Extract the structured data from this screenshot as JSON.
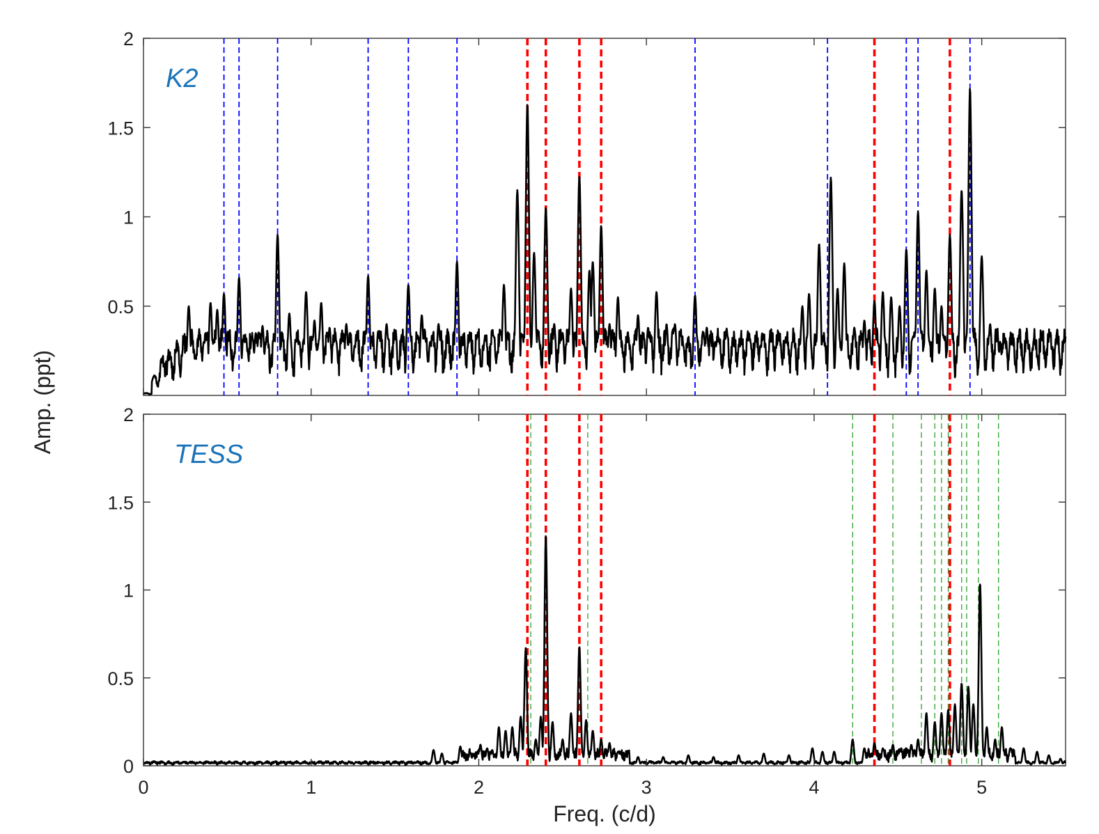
{
  "chart_data": {
    "type": "line",
    "xlabel": "Freq. (c/d)",
    "ylabel": "Amp. (ppt)",
    "xlim": [
      0,
      5.5
    ],
    "x_ticks": [
      "0",
      "1",
      "2",
      "3",
      "4",
      "5"
    ],
    "grid": false,
    "colors": {
      "spectrum": "#000000",
      "shared_lines": "#ff0000",
      "k2_lines": "#0000ff",
      "tess_lines": "#2ca02c",
      "panel_label": "#1a73b8"
    },
    "shared_frequencies": [
      2.29,
      2.4,
      2.6,
      2.73,
      4.36,
      4.81
    ],
    "panels": [
      {
        "label": "K2",
        "ylim": [
          0,
          2
        ],
        "y_ticks": [
          "0.5",
          "1",
          "1.5",
          "2"
        ],
        "marked_frequencies": [
          0.48,
          0.57,
          0.8,
          1.34,
          1.58,
          1.87,
          3.29,
          4.08,
          4.55,
          4.62,
          4.93
        ],
        "peaks": [
          [
            0.27,
            0.5
          ],
          [
            0.31,
            0.22
          ],
          [
            0.36,
            0.3
          ],
          [
            0.4,
            0.52
          ],
          [
            0.44,
            0.48
          ],
          [
            0.48,
            0.57
          ],
          [
            0.57,
            0.66
          ],
          [
            0.62,
            0.25
          ],
          [
            0.67,
            0.35
          ],
          [
            0.71,
            0.39
          ],
          [
            0.8,
            0.9
          ],
          [
            0.87,
            0.46
          ],
          [
            0.93,
            0.3
          ],
          [
            0.97,
            0.58
          ],
          [
            1.02,
            0.42
          ],
          [
            1.06,
            0.52
          ],
          [
            1.11,
            0.38
          ],
          [
            1.15,
            0.3
          ],
          [
            1.21,
            0.4
          ],
          [
            1.26,
            0.28
          ],
          [
            1.34,
            0.67
          ],
          [
            1.4,
            0.36
          ],
          [
            1.45,
            0.4
          ],
          [
            1.5,
            0.33
          ],
          [
            1.58,
            0.62
          ],
          [
            1.66,
            0.45
          ],
          [
            1.71,
            0.3
          ],
          [
            1.76,
            0.4
          ],
          [
            1.87,
            0.75
          ],
          [
            1.94,
            0.28
          ],
          [
            1.99,
            0.33
          ],
          [
            2.04,
            0.3
          ],
          [
            2.09,
            0.33
          ],
          [
            2.15,
            0.62
          ],
          [
            2.23,
            1.15
          ],
          [
            2.29,
            1.63
          ],
          [
            2.33,
            0.8
          ],
          [
            2.4,
            1.05
          ],
          [
            2.45,
            0.4
          ],
          [
            2.5,
            0.35
          ],
          [
            2.55,
            0.6
          ],
          [
            2.6,
            1.23
          ],
          [
            2.66,
            0.7
          ],
          [
            2.68,
            0.75
          ],
          [
            2.73,
            0.95
          ],
          [
            2.78,
            0.4
          ],
          [
            2.83,
            0.55
          ],
          [
            2.89,
            0.3
          ],
          [
            2.95,
            0.45
          ],
          [
            3.01,
            0.38
          ],
          [
            3.06,
            0.58
          ],
          [
            3.12,
            0.4
          ],
          [
            3.17,
            0.4
          ],
          [
            3.22,
            0.28
          ],
          [
            3.29,
            0.56
          ],
          [
            3.36,
            0.38
          ],
          [
            3.41,
            0.3
          ],
          [
            3.48,
            0.3
          ],
          [
            3.55,
            0.25
          ],
          [
            3.62,
            0.3
          ],
          [
            3.68,
            0.28
          ],
          [
            3.74,
            0.25
          ],
          [
            3.8,
            0.26
          ],
          [
            3.87,
            0.3
          ],
          [
            3.93,
            0.5
          ],
          [
            3.97,
            0.57
          ],
          [
            4.03,
            0.85
          ],
          [
            4.1,
            1.22
          ],
          [
            4.14,
            0.6
          ],
          [
            4.18,
            0.74
          ],
          [
            4.24,
            0.38
          ],
          [
            4.3,
            0.42
          ],
          [
            4.36,
            0.53
          ],
          [
            4.41,
            0.58
          ],
          [
            4.46,
            0.55
          ],
          [
            4.51,
            0.5
          ],
          [
            4.55,
            0.82
          ],
          [
            4.62,
            1.03
          ],
          [
            4.67,
            0.7
          ],
          [
            4.72,
            0.6
          ],
          [
            4.76,
            0.5
          ],
          [
            4.81,
            0.9
          ],
          [
            4.88,
            1.15
          ],
          [
            4.93,
            1.72
          ],
          [
            5.0,
            0.78
          ],
          [
            5.05,
            0.4
          ],
          [
            5.11,
            0.3
          ],
          [
            5.17,
            0.3
          ],
          [
            5.22,
            0.3
          ],
          [
            5.28,
            0.25
          ],
          [
            5.33,
            0.22
          ],
          [
            5.39,
            0.2
          ],
          [
            5.44,
            0.2
          ],
          [
            5.5,
            0.3
          ]
        ]
      },
      {
        "label": "TESS",
        "ylim": [
          0,
          2
        ],
        "y_ticks": [
          "0",
          "0.5",
          "1",
          "1.5",
          "2"
        ],
        "marked_frequencies": [
          2.31,
          2.65,
          4.23,
          4.47,
          4.64,
          4.72,
          4.76,
          4.8,
          4.88,
          4.91,
          4.98,
          5.1
        ],
        "peaks": [
          [
            1.73,
            0.09
          ],
          [
            1.78,
            0.07
          ],
          [
            1.89,
            0.11
          ],
          [
            1.95,
            0.07
          ],
          [
            2.01,
            0.12
          ],
          [
            2.05,
            0.1
          ],
          [
            2.08,
            0.09
          ],
          [
            2.12,
            0.22
          ],
          [
            2.16,
            0.2
          ],
          [
            2.2,
            0.22
          ],
          [
            2.25,
            0.28
          ],
          [
            2.28,
            0.67
          ],
          [
            2.34,
            0.15
          ],
          [
            2.37,
            0.28
          ],
          [
            2.4,
            1.31
          ],
          [
            2.44,
            0.25
          ],
          [
            2.5,
            0.15
          ],
          [
            2.55,
            0.3
          ],
          [
            2.6,
            0.68
          ],
          [
            2.64,
            0.26
          ],
          [
            2.68,
            0.2
          ],
          [
            2.73,
            0.15
          ],
          [
            2.78,
            0.13
          ],
          [
            2.83,
            0.08
          ],
          [
            2.88,
            0.06
          ],
          [
            2.95,
            0.05
          ],
          [
            3.1,
            0.05
          ],
          [
            3.25,
            0.06
          ],
          [
            3.4,
            0.05
          ],
          [
            3.55,
            0.06
          ],
          [
            3.7,
            0.07
          ],
          [
            3.85,
            0.06
          ],
          [
            3.99,
            0.1
          ],
          [
            4.05,
            0.08
          ],
          [
            4.12,
            0.08
          ],
          [
            4.23,
            0.15
          ],
          [
            4.3,
            0.1
          ],
          [
            4.36,
            0.13
          ],
          [
            4.41,
            0.1
          ],
          [
            4.47,
            0.12
          ],
          [
            4.52,
            0.1
          ],
          [
            4.58,
            0.12
          ],
          [
            4.62,
            0.15
          ],
          [
            4.67,
            0.3
          ],
          [
            4.72,
            0.25
          ],
          [
            4.76,
            0.3
          ],
          [
            4.8,
            0.32
          ],
          [
            4.84,
            0.35
          ],
          [
            4.88,
            0.47
          ],
          [
            4.92,
            0.45
          ],
          [
            4.95,
            0.35
          ],
          [
            4.99,
            1.04
          ],
          [
            5.03,
            0.22
          ],
          [
            5.08,
            0.15
          ],
          [
            5.12,
            0.22
          ],
          [
            5.17,
            0.1
          ],
          [
            5.25,
            0.1
          ],
          [
            5.33,
            0.08
          ],
          [
            5.4,
            0.06
          ],
          [
            5.47,
            0.04
          ]
        ]
      }
    ]
  }
}
